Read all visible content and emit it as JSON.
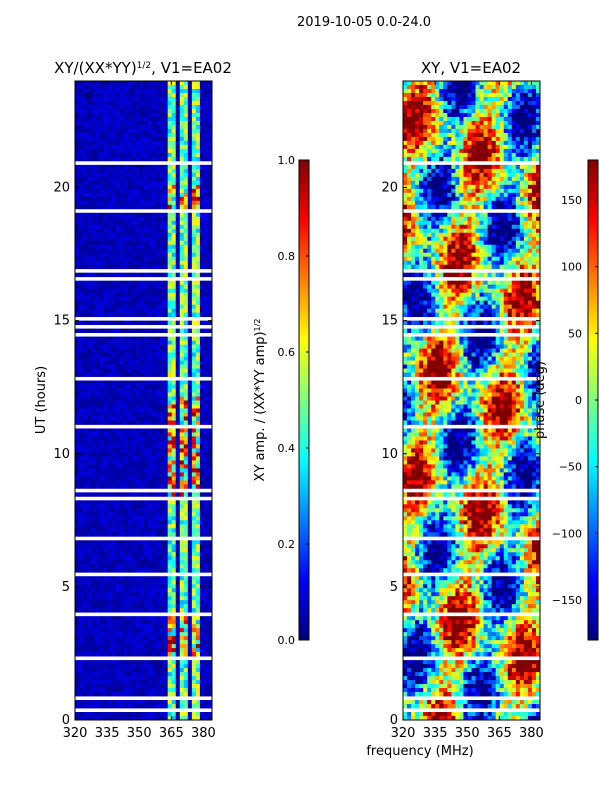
{
  "suptitle": "2019-10-05 0.0-24.0",
  "chart_data": [
    {
      "type": "heatmap",
      "title_main": "XY/(XX*YY)",
      "title_exp": "1/2",
      "title_tail": ", V1=EA02",
      "ylabel": "UT (hours)",
      "xlabel": "",
      "xlim": [
        320,
        384
      ],
      "ylim": [
        0,
        24
      ],
      "xticks": [
        320,
        335,
        350,
        365,
        380
      ],
      "yticks": [
        0,
        5,
        10,
        15,
        20
      ],
      "corner_mark": "0",
      "colorbar": {
        "label_main": "XY amp. / (XX*YY amp)",
        "label_exp": "1/2",
        "range": [
          0.0,
          1.0
        ],
        "ticks": [
          "0.0",
          "0.2",
          "0.4",
          "0.6",
          "0.8",
          "1.0"
        ],
        "tick_values": [
          0.0,
          0.2,
          0.4,
          0.6,
          0.8,
          1.0
        ]
      }
    },
    {
      "type": "heatmap",
      "title": "XY, V1=EA02",
      "ylabel": "",
      "xlabel": "frequency (MHz)",
      "xlim": [
        320,
        384
      ],
      "ylim": [
        0,
        24
      ],
      "xticks": [
        320,
        335,
        350,
        365,
        380
      ],
      "yticks": [
        0,
        5,
        10,
        15,
        20
      ],
      "colorbar": {
        "label": "phase (deg)",
        "range": [
          -180,
          180
        ],
        "ticks": [
          "150",
          "100",
          "50",
          "0",
          "−50",
          "−100",
          "−150"
        ],
        "tick_values": [
          150,
          100,
          50,
          0,
          -50,
          -100,
          -150
        ]
      }
    }
  ]
}
